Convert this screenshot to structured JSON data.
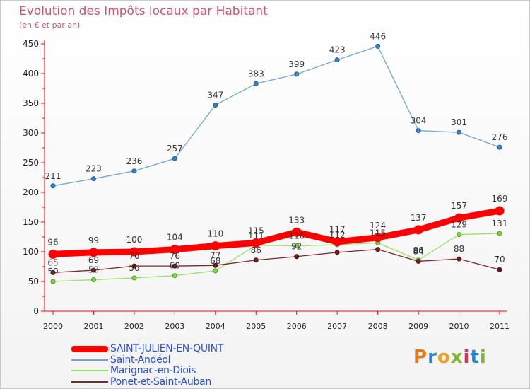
{
  "title": "Evolution des Impôts locaux par Habitant",
  "subtitle": "(en € et par an)",
  "logo": {
    "text": "Proxiti",
    "colors": [
      "#e07a20",
      "#2c85c8",
      "#f0a020",
      "#7ab833",
      "#d93060",
      "#2c85c8",
      "#7ab833"
    ]
  },
  "chart_data": {
    "type": "line",
    "title": "Evolution des Impôts locaux par Habitant",
    "subtitle": "(en € et par an)",
    "xlabel": "",
    "ylabel": "",
    "x": [
      "2000",
      "2001",
      "2002",
      "2003",
      "2004",
      "2005",
      "2006",
      "2007",
      "2008",
      "2009",
      "2010",
      "2011"
    ],
    "ylim": [
      0,
      450
    ],
    "yticks": [
      "0",
      "50",
      "100",
      "150",
      "200",
      "250",
      "300",
      "350",
      "400",
      "450"
    ],
    "grid": false,
    "legend_position": "bottom-left",
    "series": [
      {
        "name": "SAINT-JULIEN-EN-QUINT",
        "color": "#ff0000",
        "values": [
          96,
          99,
          100,
          104,
          110,
          115,
          133,
          117,
          124,
          137,
          157,
          169
        ],
        "labels": [
          "96",
          "99",
          "100",
          "104",
          "110",
          "115",
          "133",
          "117",
          "124",
          "137",
          "157",
          "169"
        ]
      },
      {
        "name": "Saint-Andéol",
        "color": "#6fa5d6",
        "values": [
          211,
          223,
          236,
          257,
          347,
          383,
          399,
          423,
          446,
          304,
          301,
          276
        ],
        "labels": [
          "211",
          "223",
          "236",
          "257",
          "347",
          "383",
          "399",
          "423",
          "446",
          "304",
          "301",
          "276"
        ]
      },
      {
        "name": "Marignac-en-Diois",
        "color": "#99e066",
        "values": [
          50,
          53,
          56,
          60,
          68,
          111,
          110,
          112,
          115,
          86,
          129,
          131
        ],
        "labels": [
          "50",
          "53",
          "56",
          "60",
          "68",
          "111",
          "110",
          "112",
          "115",
          "86",
          "129",
          "131"
        ]
      },
      {
        "name": "Ponet-et-Saint-Auban",
        "color": "#7a2a2a",
        "values": [
          65,
          69,
          76,
          76,
          77,
          86,
          92,
          99,
          104,
          84,
          88,
          70
        ],
        "labels": [
          "65",
          "69",
          "76",
          "76",
          "77",
          "86",
          "92",
          "",
          "",
          "84",
          "88",
          "70"
        ]
      }
    ]
  }
}
